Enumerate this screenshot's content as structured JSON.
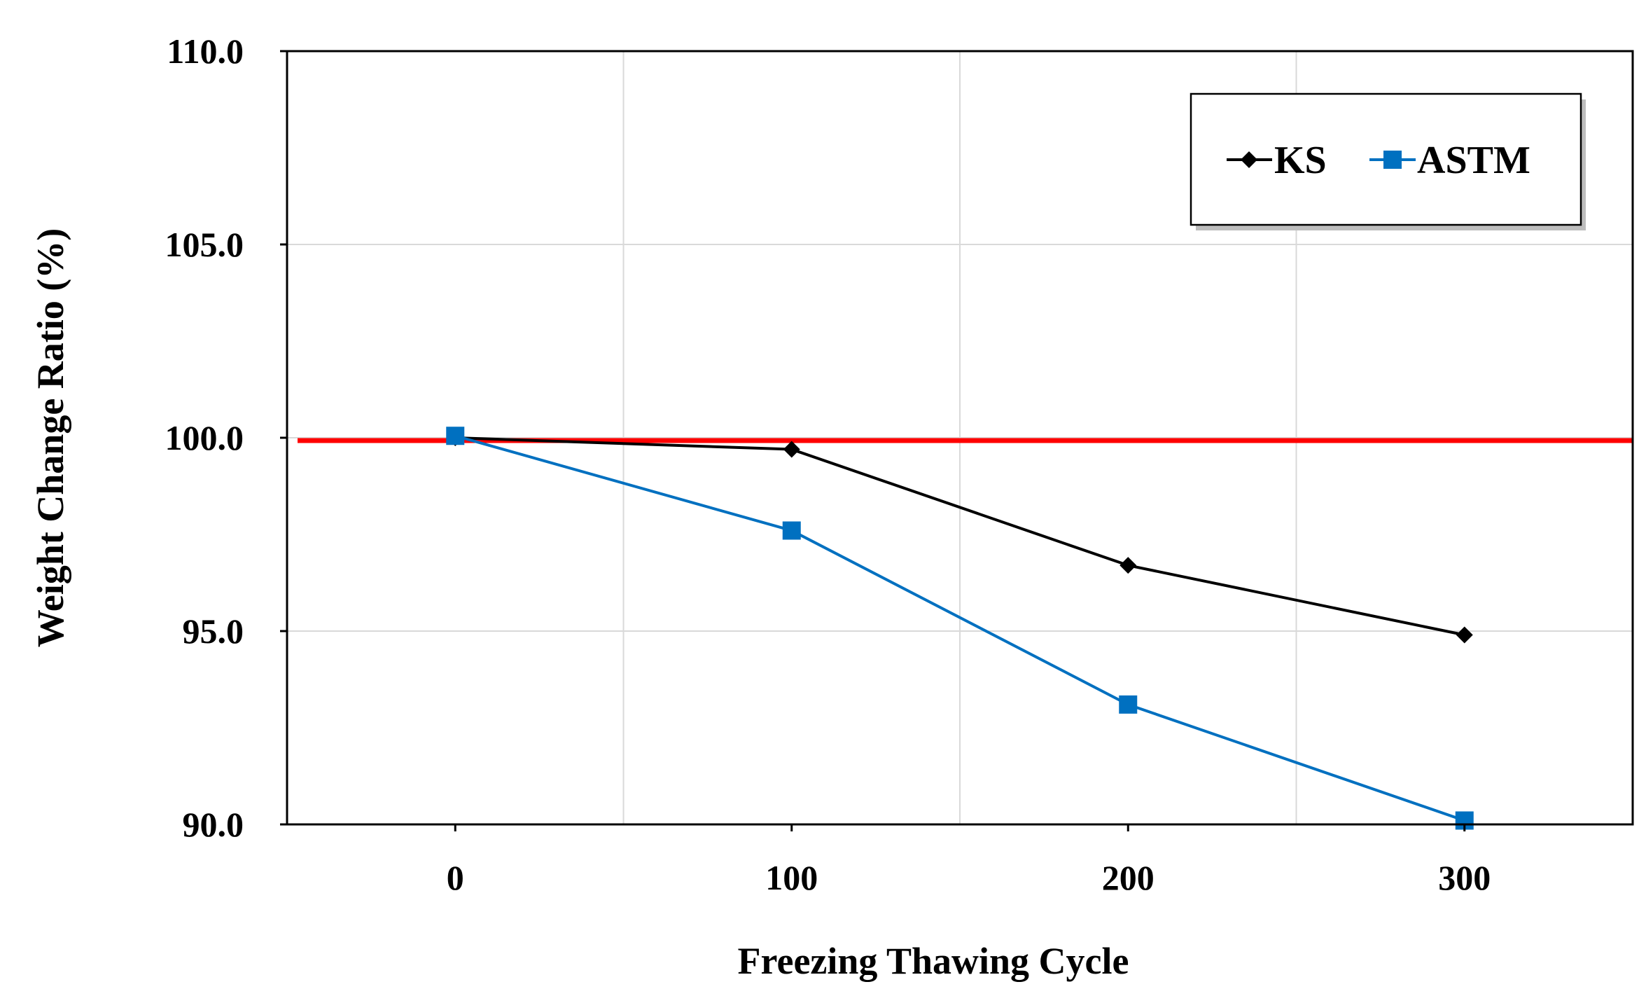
{
  "chart_data": {
    "type": "line",
    "title": "",
    "xlabel": "Freezing Thawing Cycle",
    "ylabel": "Weight Change Ratio (%)",
    "x": [
      0,
      100,
      200,
      300
    ],
    "xlim": [
      -50,
      350
    ],
    "ylim": [
      90,
      110
    ],
    "xticks": [
      0,
      100,
      200,
      300
    ],
    "xtick_labels": [
      "0",
      "100",
      "200",
      "300"
    ],
    "yticks": [
      90,
      95,
      100,
      105,
      110
    ],
    "ytick_labels": [
      "90.0",
      "95.0",
      "100.0",
      "105.0",
      "110.0"
    ],
    "vertical_gridlines_at": [
      50,
      150,
      250
    ],
    "reference_line": {
      "y": 100,
      "color": "#ff0000"
    },
    "series": [
      {
        "name": "KS",
        "values": [
          100.0,
          99.7,
          96.7,
          94.9
        ],
        "color": "#000000",
        "marker": "diamond"
      },
      {
        "name": "ASTM",
        "values": [
          100.05,
          97.6,
          93.1,
          90.1
        ],
        "color": "#0070c0",
        "marker": "square"
      }
    ],
    "legend": {
      "position": "top-right",
      "items": [
        "KS",
        "ASTM"
      ]
    },
    "grid": true
  }
}
